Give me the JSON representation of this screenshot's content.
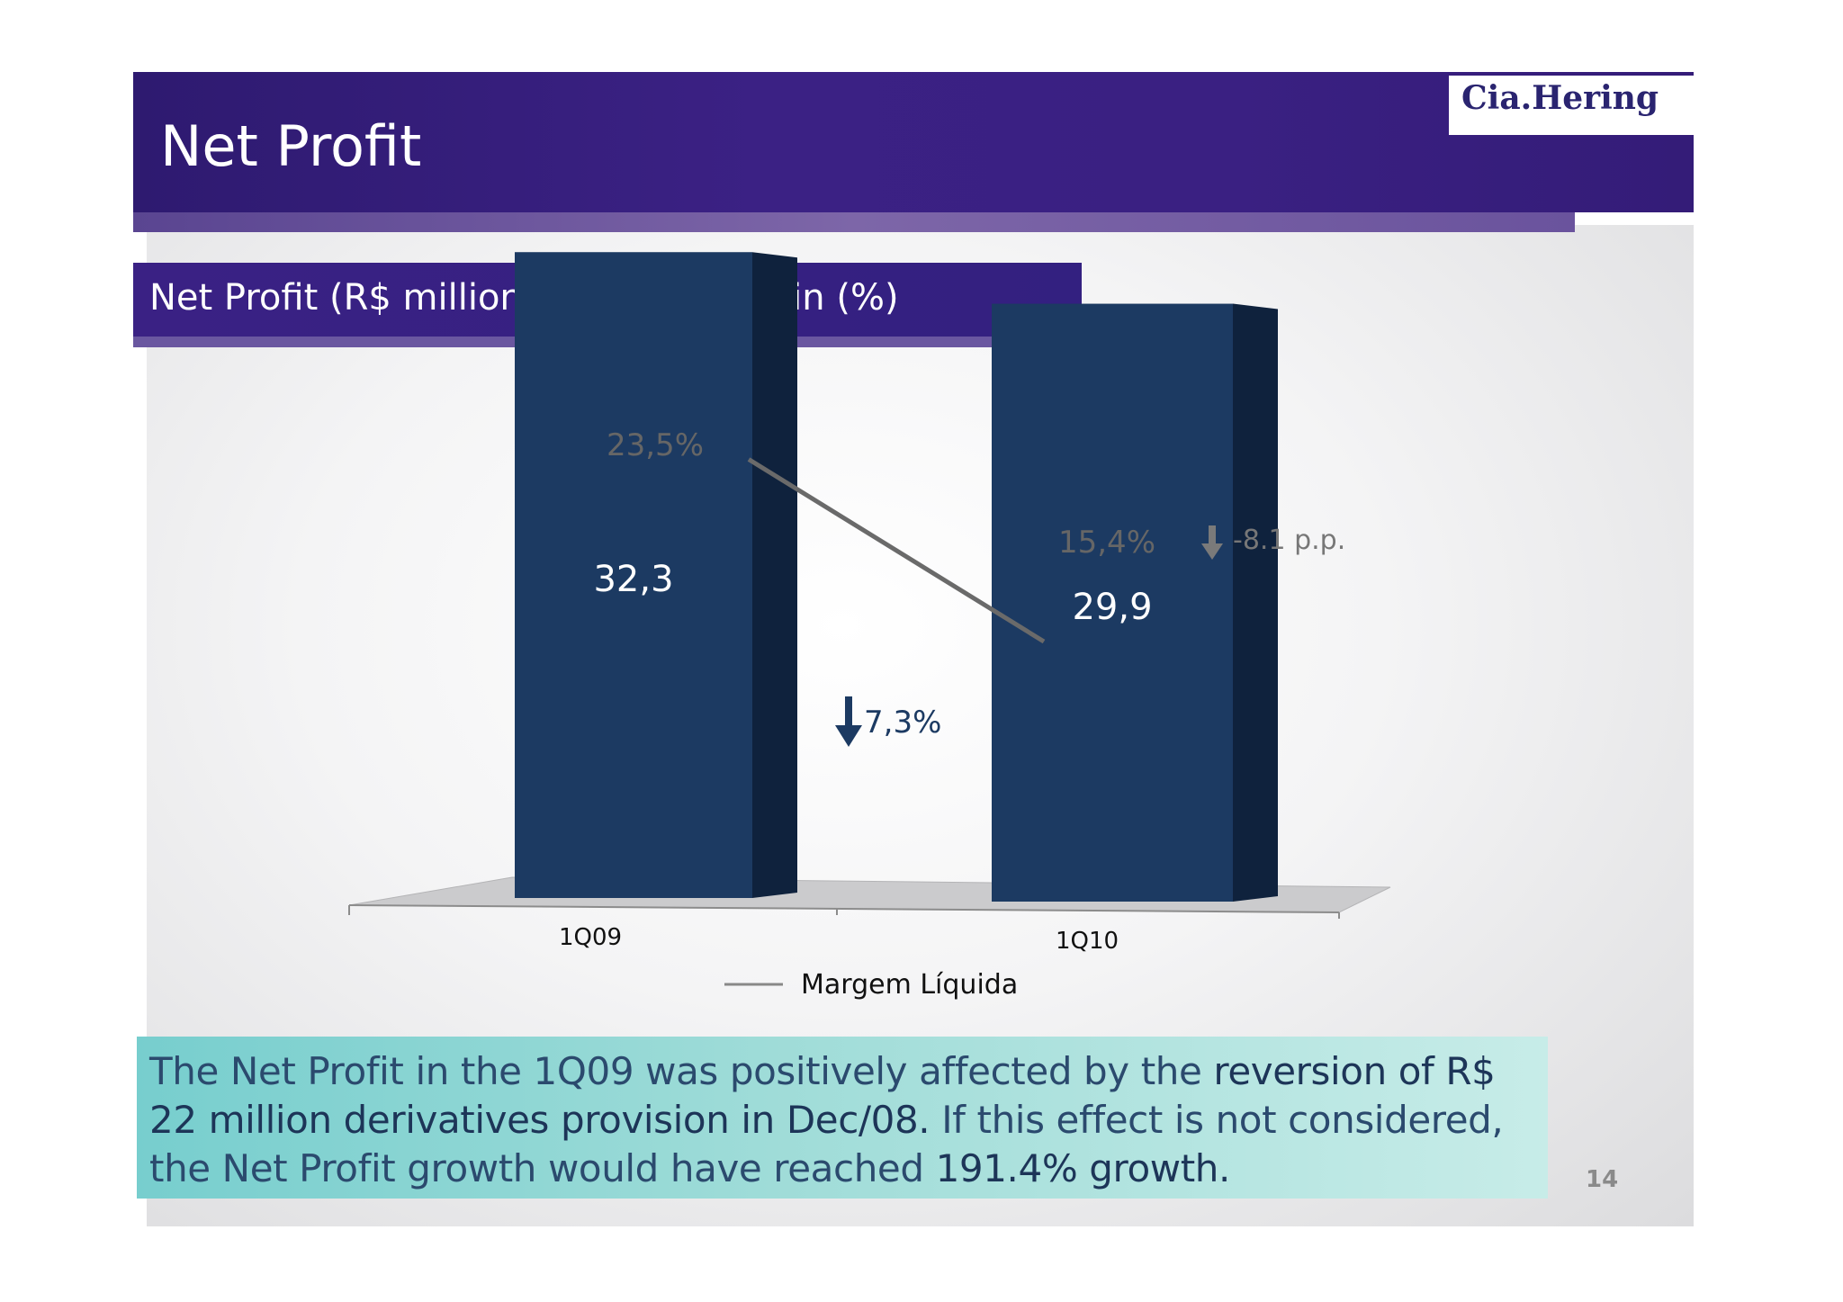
{
  "slide": {
    "title": "Net Profit",
    "logo": "Cia.Hering",
    "page_number": "14"
  },
  "chart_data": {
    "type": "bar",
    "title": "Net Profit (R$ million) and Net Margin (%)",
    "categories": [
      "1Q09",
      "1Q10"
    ],
    "series": [
      {
        "values": [
          32.3,
          29.9
        ],
        "value_labels": [
          "32,3",
          "29,9"
        ],
        "color": "#1c3a62"
      },
      {
        "name": "Margem Líquida",
        "type": "line",
        "values": [
          23.5,
          15.4
        ],
        "value_labels": [
          "23,5%",
          "15,4%"
        ],
        "color": "#6a6a6a"
      }
    ],
    "annotations": [
      {
        "text": "7,3%",
        "icon": "arrow-down-icon"
      },
      {
        "text": "-8.1 p.p.",
        "icon": "arrow-down-icon"
      }
    ],
    "legend": {
      "position": "bottom",
      "label": "Margem Líquida"
    },
    "bar_ylim": [
      0,
      45
    ],
    "line_ylim": [
      0,
      30
    ],
    "grid": false,
    "three_d": true
  },
  "note": {
    "part1": "The Net Profit in the 1Q09 was positively affected by the ",
    "bold1": "reversion of R$ 22 million derivatives provision in Dec/08.",
    "part2": "  If this effect is not considered, the Net Profit growth would have reached ",
    "bold2": "191.4% growth."
  }
}
